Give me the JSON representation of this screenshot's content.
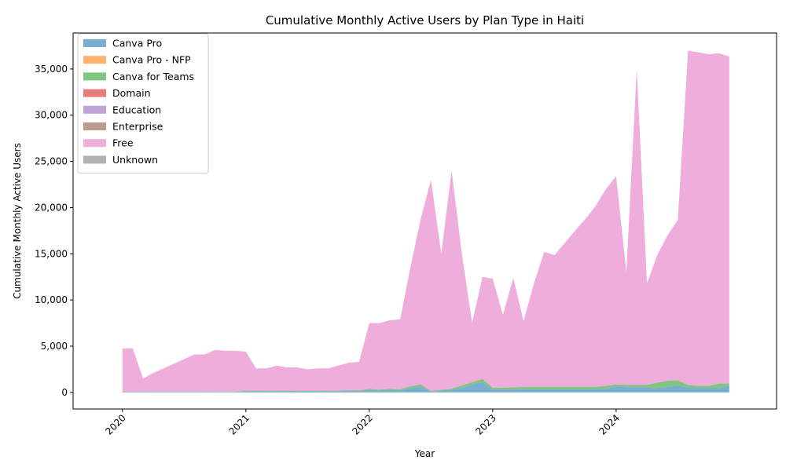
{
  "chart_data": {
    "type": "area",
    "stacked": true,
    "title": "Cumulative Monthly Active Users by Plan Type in Haiti",
    "xlabel": "Year",
    "ylabel": "Cumulative Monthly Active Users",
    "xlim": [
      2019.6,
      2025.3
    ],
    "ylim": [
      -1800,
      38900
    ],
    "x_ticks": [
      2020,
      2021,
      2022,
      2023,
      2024
    ],
    "x_tick_labels": [
      "2020",
      "2021",
      "2022",
      "2023",
      "2024"
    ],
    "y_ticks": [
      0,
      5000,
      10000,
      15000,
      20000,
      25000,
      30000,
      35000
    ],
    "y_tick_labels": [
      "0",
      "5,000",
      "10,000",
      "15,000",
      "20,000",
      "25,000",
      "30,000",
      "35,000"
    ],
    "grid": false,
    "legend_position": "upper-left",
    "x": [
      2020.0,
      2020.083,
      2020.167,
      2020.25,
      2020.333,
      2020.417,
      2020.5,
      2020.583,
      2020.667,
      2020.75,
      2020.833,
      2020.917,
      2021.0,
      2021.083,
      2021.167,
      2021.25,
      2021.333,
      2021.417,
      2021.5,
      2021.583,
      2021.667,
      2021.75,
      2021.833,
      2021.917,
      2022.0,
      2022.083,
      2022.167,
      2022.25,
      2022.333,
      2022.417,
      2022.5,
      2022.583,
      2022.667,
      2022.75,
      2022.833,
      2022.917,
      2023.0,
      2023.083,
      2023.167,
      2023.25,
      2023.333,
      2023.417,
      2023.5,
      2023.583,
      2023.667,
      2023.75,
      2023.833,
      2023.917,
      2024.0,
      2024.083,
      2024.167,
      2024.25,
      2024.333,
      2024.417,
      2024.5,
      2024.583,
      2024.667,
      2024.75,
      2024.833,
      2024.917
    ],
    "series": [
      {
        "name": "Canva Pro",
        "color": "#1f77b4",
        "values": [
          50,
          50,
          50,
          60,
          60,
          60,
          60,
          60,
          50,
          60,
          60,
          60,
          120,
          120,
          120,
          130,
          130,
          130,
          100,
          120,
          120,
          130,
          150,
          150,
          230,
          180,
          250,
          200,
          450,
          650,
          100,
          180,
          250,
          500,
          800,
          1100,
          300,
          300,
          300,
          350,
          350,
          350,
          350,
          350,
          350,
          350,
          350,
          400,
          650,
          600,
          550,
          500,
          450,
          600,
          750,
          500,
          450,
          450,
          450,
          700
        ]
      },
      {
        "name": "Canva Pro - NFP",
        "color": "#ff7f0e",
        "values": [
          0,
          0,
          0,
          0,
          0,
          0,
          0,
          0,
          0,
          0,
          0,
          0,
          0,
          0,
          0,
          0,
          0,
          0,
          0,
          0,
          0,
          0,
          0,
          0,
          0,
          0,
          0,
          0,
          0,
          0,
          0,
          0,
          0,
          0,
          0,
          0,
          0,
          0,
          0,
          0,
          0,
          0,
          0,
          0,
          0,
          0,
          0,
          0,
          0,
          0,
          0,
          0,
          0,
          0,
          0,
          0,
          0,
          0,
          0,
          0
        ]
      },
      {
        "name": "Canva for Teams",
        "color": "#2ca02c",
        "values": [
          20,
          20,
          20,
          20,
          20,
          20,
          20,
          20,
          20,
          20,
          20,
          20,
          50,
          50,
          50,
          50,
          50,
          50,
          50,
          50,
          50,
          50,
          60,
          60,
          150,
          120,
          150,
          120,
          200,
          200,
          50,
          100,
          150,
          250,
          300,
          350,
          200,
          200,
          250,
          250,
          250,
          250,
          250,
          250,
          250,
          250,
          250,
          300,
          200,
          200,
          250,
          300,
          600,
          650,
          550,
          300,
          250,
          250,
          500,
          250
        ]
      },
      {
        "name": "Domain",
        "color": "#d62728",
        "values": [
          0,
          0,
          0,
          0,
          0,
          0,
          0,
          0,
          0,
          0,
          0,
          0,
          0,
          0,
          0,
          0,
          0,
          0,
          0,
          0,
          0,
          0,
          0,
          0,
          0,
          0,
          0,
          0,
          0,
          0,
          0,
          0,
          0,
          0,
          0,
          0,
          0,
          0,
          0,
          0,
          0,
          0,
          0,
          0,
          0,
          0,
          0,
          0,
          0,
          0,
          0,
          0,
          0,
          0,
          0,
          0,
          0,
          0,
          0,
          0
        ]
      },
      {
        "name": "Education",
        "color": "#9467bd",
        "values": [
          0,
          0,
          0,
          0,
          0,
          0,
          0,
          0,
          0,
          0,
          0,
          0,
          0,
          0,
          0,
          0,
          0,
          0,
          0,
          0,
          0,
          0,
          0,
          0,
          0,
          0,
          0,
          0,
          0,
          0,
          0,
          0,
          0,
          0,
          0,
          0,
          0,
          0,
          0,
          0,
          0,
          0,
          0,
          0,
          0,
          0,
          0,
          0,
          0,
          0,
          0,
          0,
          0,
          0,
          0,
          0,
          0,
          0,
          0,
          0
        ]
      },
      {
        "name": "Enterprise",
        "color": "#8c564b",
        "values": [
          0,
          0,
          0,
          0,
          0,
          0,
          0,
          0,
          0,
          0,
          0,
          0,
          0,
          0,
          0,
          0,
          0,
          0,
          0,
          0,
          0,
          0,
          0,
          0,
          0,
          0,
          0,
          0,
          0,
          0,
          0,
          0,
          0,
          0,
          0,
          0,
          0,
          0,
          0,
          0,
          0,
          0,
          0,
          0,
          0,
          0,
          0,
          0,
          0,
          0,
          0,
          0,
          0,
          0,
          0,
          0,
          0,
          0,
          0,
          0
        ]
      },
      {
        "name": "Free",
        "color": "#e377c2",
        "values": [
          4680,
          4680,
          1430,
          2020,
          2520,
          3020,
          3520,
          4020,
          4030,
          4520,
          4420,
          4420,
          4230,
          2430,
          2430,
          2720,
          2520,
          2520,
          2350,
          2430,
          2430,
          2720,
          2990,
          3090,
          7120,
          7200,
          7400,
          7580,
          12850,
          17950,
          22850,
          14720,
          23600,
          14250,
          6400,
          11050,
          11800,
          7900,
          11850,
          7100,
          11150,
          14600,
          14250,
          15550,
          16900,
          18150,
          19550,
          21300,
          22550,
          12200,
          34200,
          11000,
          13800,
          15750,
          17400,
          36200,
          36100,
          35900,
          35750,
          35400
        ]
      },
      {
        "name": "Unknown",
        "color": "#7f7f7f",
        "values": [
          0,
          0,
          0,
          0,
          0,
          0,
          0,
          0,
          0,
          0,
          0,
          0,
          0,
          0,
          0,
          0,
          0,
          0,
          0,
          0,
          0,
          0,
          0,
          0,
          0,
          0,
          0,
          0,
          0,
          0,
          0,
          0,
          0,
          0,
          0,
          0,
          0,
          0,
          0,
          0,
          0,
          0,
          0,
          0,
          0,
          0,
          0,
          0,
          0,
          0,
          0,
          0,
          0,
          0,
          0,
          0,
          0,
          0,
          0,
          0
        ]
      }
    ],
    "area_alpha": 0.6
  }
}
